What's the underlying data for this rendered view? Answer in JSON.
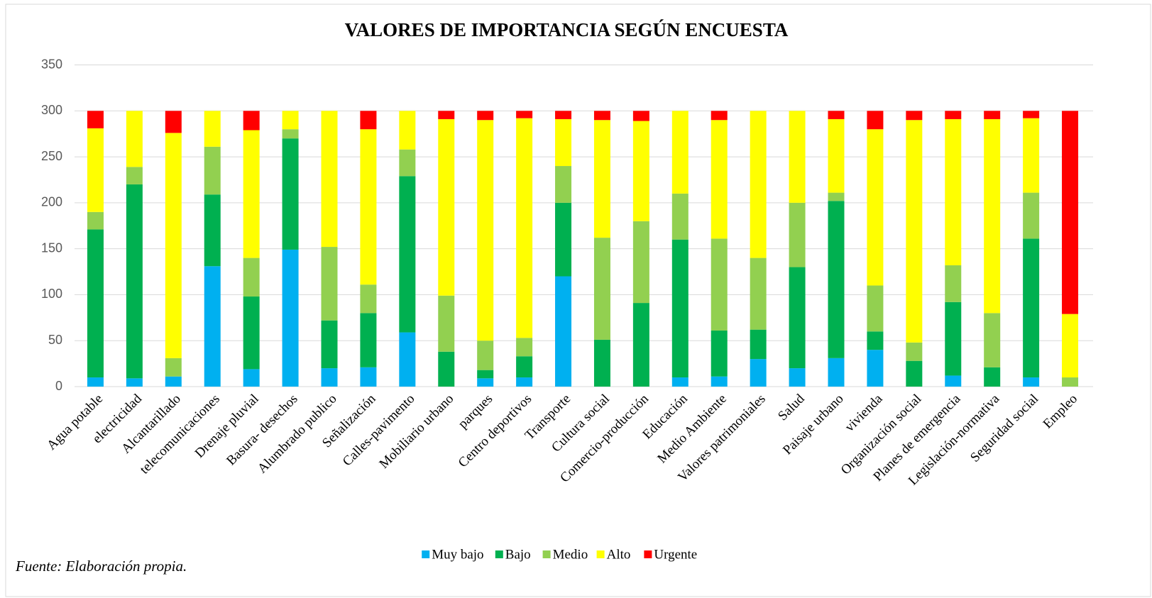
{
  "chart_data": {
    "type": "stacked_bar",
    "title": "VALORES DE IMPORTANCIA SEGÚN ENCUESTA",
    "source": "Fuente: Elaboración propia.",
    "categories": [
      "Agua potable",
      "electricidad",
      "Alcantarillado",
      "telecomunicaciones",
      "Drenaje pluvial",
      "Basura- desechos",
      "Alumbrado publico",
      "Señalización",
      "Calles-pavimento",
      "Mobiliario urbano",
      "parques",
      "Centro deportivos",
      "Transporte",
      "Cultura social",
      "Comercio-producción",
      "Educación",
      "Medio Ambiente",
      "Valores patrimoniales",
      "Salud",
      "Paisaje urbano",
      "vivienda",
      "Organización social",
      "Planes de emergencia",
      "Legislación-normativa",
      "Seguridad social",
      "Empleo"
    ],
    "series": [
      {
        "name": "Muy bajo",
        "color": "#00b0f0",
        "values": [
          10,
          9,
          11,
          131,
          19,
          149,
          20,
          21,
          59,
          0,
          9,
          10,
          120,
          0,
          0,
          10,
          11,
          30,
          20,
          31,
          40,
          0,
          12,
          0,
          10,
          0
        ]
      },
      {
        "name": "Bajo",
        "color": "#00b050",
        "values": [
          161,
          211,
          0,
          78,
          79,
          121,
          52,
          59,
          170,
          38,
          9,
          23,
          80,
          51,
          91,
          150,
          50,
          32,
          110,
          171,
          20,
          28,
          80,
          21,
          151,
          0
        ]
      },
      {
        "name": "Medio",
        "color": "#92d050",
        "values": [
          19,
          19,
          20,
          52,
          42,
          10,
          80,
          31,
          29,
          61,
          32,
          20,
          40,
          111,
          89,
          50,
          100,
          78,
          70,
          9,
          50,
          20,
          40,
          59,
          50,
          10
        ]
      },
      {
        "name": "Alto",
        "color": "#ffff00",
        "values": [
          91,
          61,
          245,
          39,
          139,
          20,
          148,
          169,
          42,
          192,
          240,
          239,
          51,
          128,
          109,
          90,
          129,
          160,
          100,
          80,
          170,
          242,
          159,
          211,
          81,
          69
        ]
      },
      {
        "name": "Urgente",
        "color": "#ff0000",
        "values": [
          19,
          0,
          24,
          0,
          21,
          0,
          0,
          20,
          0,
          9,
          10,
          8,
          9,
          10,
          11,
          0,
          10,
          0,
          0,
          9,
          20,
          10,
          9,
          9,
          8,
          221
        ]
      }
    ],
    "ylim": [
      0,
      350
    ],
    "yticks": [
      0,
      50,
      100,
      150,
      200,
      250,
      300,
      350
    ],
    "grid": true,
    "legend": "bottom"
  }
}
